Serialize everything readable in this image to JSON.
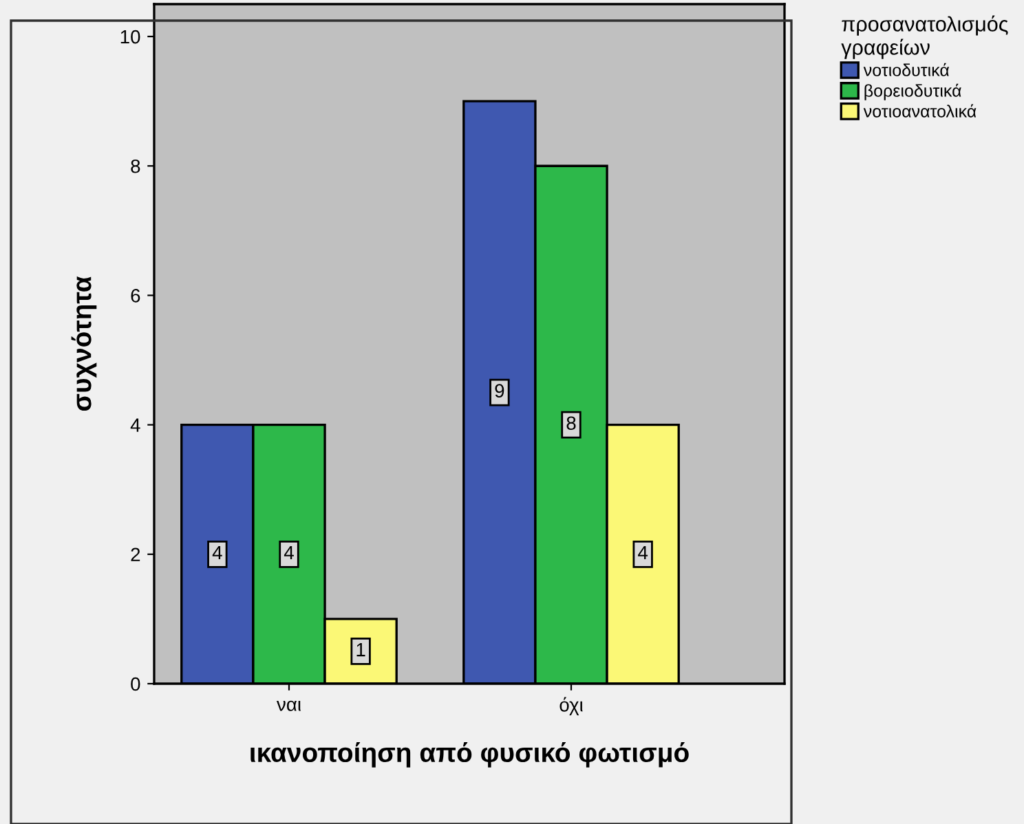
{
  "chart_data": {
    "type": "bar",
    "xlabel": "ικανοποίηση από φυσικό φωτισμό",
    "ylabel": "συχνότητα",
    "legend_title": "προσανατολισμός\nγραφείων",
    "categories": [
      "ναι",
      "όχι"
    ],
    "series": [
      {
        "name": "νοτιοδυτικά",
        "color": "#3f58b0",
        "values": [
          4,
          9
        ]
      },
      {
        "name": "βορειοδυτικά",
        "color": "#2db84a",
        "values": [
          4,
          8
        ]
      },
      {
        "name": "νοτιοανατολικά",
        "color": "#fbf876",
        "values": [
          1,
          4
        ]
      }
    ],
    "ylim": [
      0,
      10.5
    ],
    "yticks": [
      0,
      2,
      4,
      6,
      8,
      10
    ],
    "data_labels": true,
    "legend": "top right",
    "grid": false
  }
}
